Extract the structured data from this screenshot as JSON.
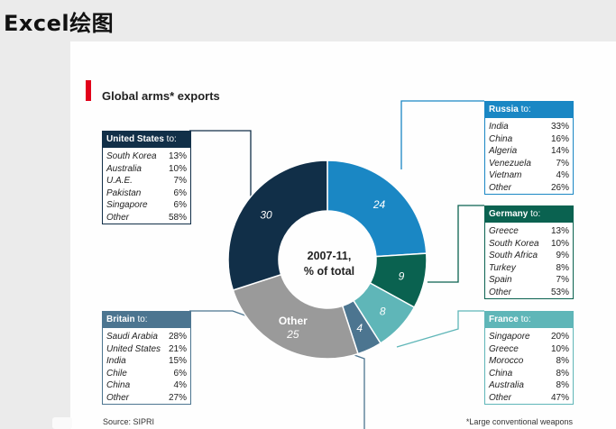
{
  "header": {
    "title": "Excel绘图"
  },
  "chart_data": {
    "type": "pie",
    "title": "Global arms* exports",
    "center_label": [
      "2007-11,",
      "% of total"
    ],
    "slices": [
      {
        "label": "",
        "value": 24,
        "color": "#1a87c4"
      },
      {
        "label": "",
        "value": 9,
        "color": "#0a6250"
      },
      {
        "label": "",
        "value": 8,
        "color": "#5fb6b8"
      },
      {
        "label": "",
        "value": 4,
        "color": "#4c7590"
      },
      {
        "label": "Other",
        "value": 25,
        "color": "#9a9a9a"
      },
      {
        "label": "",
        "value": 30,
        "color": "#112f48"
      }
    ],
    "source": "Source: SIPRI",
    "footnote": "*Large conventional weapons"
  },
  "boxes": [
    {
      "id": "russia",
      "country": "Russia",
      "to": " to:",
      "color": "#1a87c4",
      "rows": [
        [
          "India",
          "33%"
        ],
        [
          "China",
          "16%"
        ],
        [
          "Algeria",
          "14%"
        ],
        [
          "Venezuela",
          "7%"
        ],
        [
          "Vietnam",
          "4%"
        ],
        [
          "Other",
          "26%"
        ]
      ]
    },
    {
      "id": "united-states",
      "country": "United States",
      "to": " to:",
      "color": "#112f48",
      "rows": [
        [
          "South Korea",
          "13%"
        ],
        [
          "Australia",
          "10%"
        ],
        [
          "U.A.E.",
          "7%"
        ],
        [
          "Pakistan",
          "6%"
        ],
        [
          "Singapore",
          "6%"
        ],
        [
          "Other",
          "58%"
        ]
      ]
    },
    {
      "id": "germany",
      "country": "Germany",
      "to": " to:",
      "color": "#0a6250",
      "rows": [
        [
          "Greece",
          "13%"
        ],
        [
          "South Korea",
          "10%"
        ],
        [
          "South Africa",
          "9%"
        ],
        [
          "Turkey",
          "8%"
        ],
        [
          "Spain",
          "7%"
        ],
        [
          "Other",
          "53%"
        ]
      ]
    },
    {
      "id": "britain",
      "country": "Britain",
      "to": " to:",
      "color": "#4c7590",
      "rows": [
        [
          "Saudi Arabia",
          "28%"
        ],
        [
          "United States",
          "21%"
        ],
        [
          "India",
          "15%"
        ],
        [
          "Chile",
          "6%"
        ],
        [
          "China",
          "4%"
        ],
        [
          "Other",
          "27%"
        ]
      ]
    },
    {
      "id": "france",
      "country": "France",
      "to": " to:",
      "color": "#5fb6b8",
      "rows": [
        [
          "Singapore",
          "20%"
        ],
        [
          "Greece",
          "10%"
        ],
        [
          "Morocco",
          "8%"
        ],
        [
          "China",
          "8%"
        ],
        [
          "Australia",
          "8%"
        ],
        [
          "Other",
          "47%"
        ]
      ]
    }
  ]
}
